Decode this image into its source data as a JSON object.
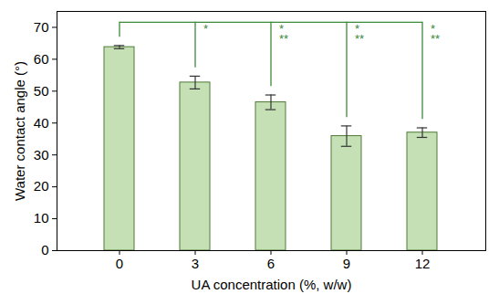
{
  "chart_data": {
    "type": "bar",
    "categories": [
      "0",
      "3",
      "6",
      "9",
      "12"
    ],
    "values": [
      63.8,
      52.7,
      46.5,
      35.9,
      37.0
    ],
    "errors": [
      0.5,
      2.0,
      2.3,
      3.2,
      1.5
    ],
    "color": "#c5e0b4",
    "xlabel": "UA concentration (%, w/w)",
    "ylabel": "Water contact angle (°)",
    "ylim": [
      0,
      75
    ],
    "yticks": [
      0,
      10,
      20,
      30,
      40,
      50,
      60,
      70
    ],
    "significance": [
      {
        "from": "0",
        "to": "3",
        "labels": [
          "*"
        ],
        "color": "#3a8a3a"
      },
      {
        "from": "0",
        "to": "6",
        "labels": [
          "*",
          "**"
        ],
        "color": "#3a8a3a"
      },
      {
        "from": "0",
        "to": "9",
        "labels": [
          "*",
          "**"
        ],
        "color": "#3a8a3a"
      },
      {
        "from": "0",
        "to": "12",
        "labels": [
          "*",
          "**"
        ],
        "color": "#3a8a3a"
      }
    ]
  }
}
